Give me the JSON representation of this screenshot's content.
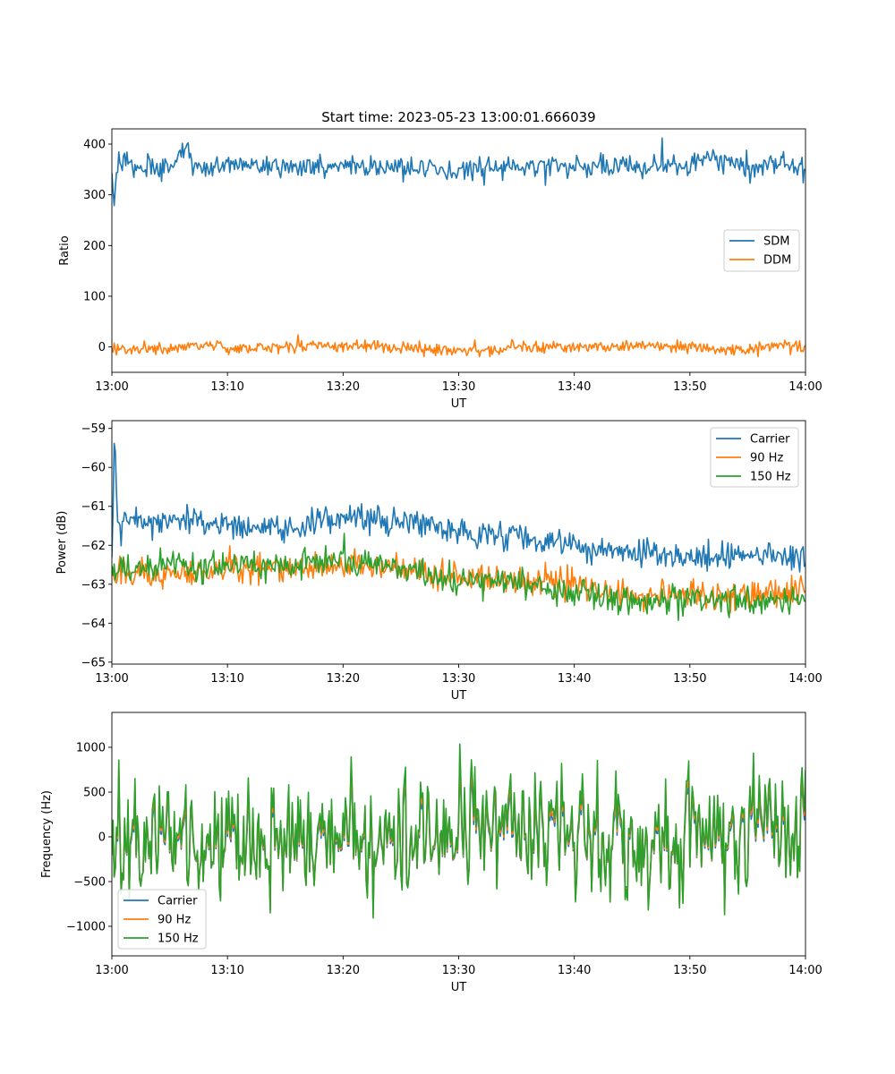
{
  "figure": {
    "title": "Start time: 2023-05-23 13:00:01.666039"
  },
  "chart_data": [
    {
      "type": "line",
      "xlabel": "UT",
      "ylabel": "Ratio",
      "xlim": [
        "13:00",
        "14:00"
      ],
      "ylim": [
        -50,
        430
      ],
      "xticks": [
        "13:00",
        "13:10",
        "13:20",
        "13:30",
        "13:40",
        "13:50",
        "14:00"
      ],
      "yticks": [
        0,
        100,
        200,
        300,
        400
      ],
      "legend_position": "center-right",
      "noise_seed": 11,
      "series": [
        {
          "name": "SDM",
          "color": "#1f77b4",
          "x_minutes": [
            0,
            0.2,
            0.4,
            0.6,
            2,
            5,
            6.5,
            7,
            10,
            15,
            20,
            25,
            30,
            35,
            40,
            45,
            50,
            52,
            55,
            58,
            60
          ],
          "values": [
            320,
            268,
            345,
            365,
            358,
            352,
            395,
            355,
            358,
            355,
            355,
            352,
            350,
            355,
            355,
            358,
            360,
            370,
            358,
            360,
            350
          ],
          "noise_amplitude": 18
        },
        {
          "name": "DDM",
          "color": "#ff7f0e",
          "x_minutes": [
            0,
            5,
            8,
            10,
            15,
            20,
            25,
            30,
            35,
            40,
            45,
            50,
            55,
            58,
            60
          ],
          "values": [
            -5,
            -2,
            5,
            -5,
            0,
            3,
            -2,
            -8,
            0,
            0,
            3,
            0,
            -5,
            5,
            -2
          ],
          "noise_amplitude": 10
        }
      ]
    },
    {
      "type": "line",
      "xlabel": "UT",
      "ylabel": "Power (dB)",
      "xlim": [
        "13:00",
        "14:00"
      ],
      "ylim": [
        -65.05,
        -58.8
      ],
      "xticks": [
        "13:00",
        "13:10",
        "13:20",
        "13:30",
        "13:40",
        "13:50",
        "14:00"
      ],
      "yticks": [
        -65,
        -64,
        -63,
        -62,
        -61,
        -60,
        -59
      ],
      "legend_position": "upper-right",
      "noise_seed": 29,
      "series": [
        {
          "name": "Carrier",
          "color": "#1f77b4",
          "x_minutes": [
            0,
            0.25,
            0.35,
            0.5,
            0.7,
            1,
            3,
            6,
            10,
            15,
            20,
            22,
            26,
            30,
            35,
            40,
            45,
            50,
            55,
            60
          ],
          "values": [
            -62.5,
            -59.05,
            -60.2,
            -61.3,
            -61.8,
            -61.3,
            -61.4,
            -61.3,
            -61.5,
            -61.6,
            -61.3,
            -61.4,
            -61.3,
            -61.7,
            -61.8,
            -62.0,
            -62.2,
            -62.3,
            -62.3,
            -62.3
          ],
          "noise_amplitude": 0.3
        },
        {
          "name": "90 Hz",
          "color": "#ff7f0e",
          "x_minutes": [
            0,
            5,
            10,
            15,
            20,
            25,
            30,
            35,
            40,
            45,
            50,
            55,
            60
          ],
          "values": [
            -62.7,
            -62.8,
            -62.6,
            -62.6,
            -62.5,
            -62.6,
            -62.8,
            -62.9,
            -63.0,
            -63.3,
            -63.3,
            -63.3,
            -63.2
          ],
          "noise_amplitude": 0.32
        },
        {
          "name": "150 Hz",
          "color": "#2ca02c",
          "x_minutes": [
            0,
            5,
            10,
            15,
            20,
            25,
            30,
            35,
            40,
            45,
            50,
            55,
            60
          ],
          "values": [
            -62.6,
            -62.5,
            -62.5,
            -62.5,
            -62.4,
            -62.6,
            -62.9,
            -63.0,
            -63.2,
            -63.4,
            -63.4,
            -63.4,
            -63.4
          ],
          "noise_amplitude": 0.32
        }
      ]
    },
    {
      "type": "line",
      "xlabel": "UT",
      "ylabel": "Frequency (Hz)",
      "xlim": [
        "13:00",
        "14:00"
      ],
      "ylim": [
        -1330,
        1390
      ],
      "xticks": [
        "13:00",
        "13:10",
        "13:20",
        "13:30",
        "13:40",
        "13:50",
        "14:00"
      ],
      "yticks": [
        -1000,
        -500,
        0,
        500,
        1000
      ],
      "legend_position": "lower-left",
      "noise_seed": 47,
      "series": [
        {
          "name": "Carrier",
          "color": "#1f77b4",
          "x_minutes": [
            0,
            60
          ],
          "values": [
            -40,
            -40
          ],
          "noise_amplitude": 430
        },
        {
          "name": "90 Hz",
          "color": "#ff7f0e",
          "x_minutes": [
            0,
            60
          ],
          "values": [
            -10,
            -10
          ],
          "noise_amplitude": 430
        },
        {
          "name": "150 Hz",
          "color": "#2ca02c",
          "x_minutes": [
            0,
            60
          ],
          "values": [
            20,
            20
          ],
          "noise_amplitude": 430
        }
      ]
    }
  ]
}
